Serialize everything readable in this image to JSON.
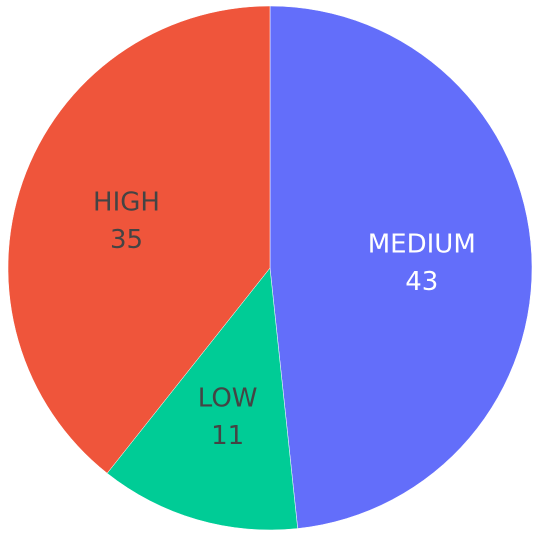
{
  "chart_data": {
    "type": "pie",
    "direction": "clockwise",
    "start": "12 o'clock",
    "slices": [
      {
        "label": "MEDIUM",
        "value": 43,
        "color": "#636efa",
        "text_color": "#ffffff"
      },
      {
        "label": "LOW",
        "value": 11,
        "color": "#00cc96",
        "text_color": "#444444"
      },
      {
        "label": "HIGH",
        "value": 35,
        "color": "#ef553b",
        "text_color": "#444444"
      }
    ]
  }
}
